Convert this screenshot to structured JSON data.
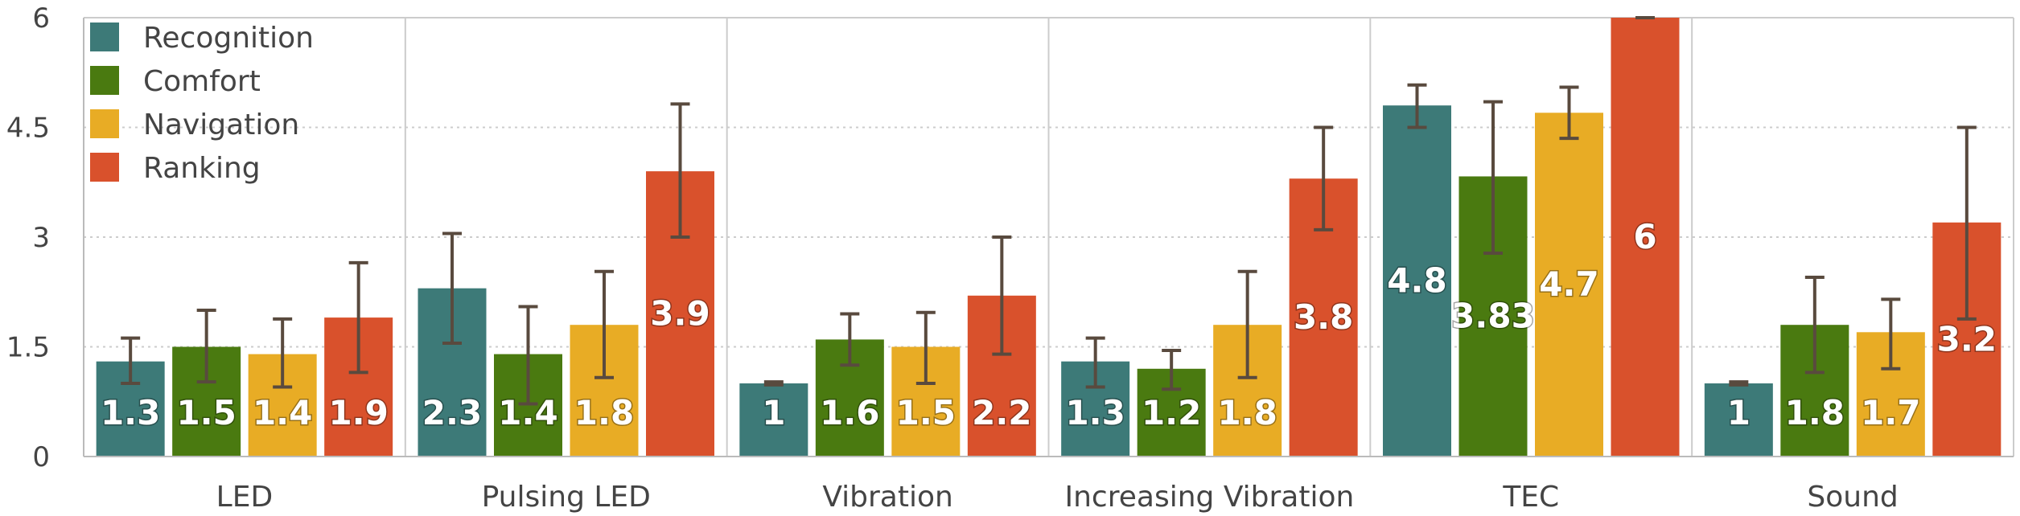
{
  "colors": {
    "Recognition": "#3d7a78",
    "Comfort": "#4a7a10",
    "Navigation": "#e8ac25",
    "Ranking": "#d9512c",
    "error_bar": "#594a3e",
    "grid": "#cccccc",
    "axis": "#bbbbbb"
  },
  "chart_data": {
    "type": "bar",
    "title": "",
    "xlabel": "",
    "ylabel": "",
    "ylim": [
      0,
      6
    ],
    "yticks": [
      "0",
      "1.5",
      "3",
      "4.5",
      "6"
    ],
    "ytick_values": [
      0,
      1.5,
      3,
      4.5,
      6
    ],
    "grid": "horizontal-dotted",
    "legend_position": "top-left",
    "categories": [
      "LED",
      "Pulsing LED",
      "Vibration",
      "Increasing Vibration",
      "TEC",
      "Sound"
    ],
    "series": [
      {
        "name": "Recognition",
        "values": [
          1.3,
          2.3,
          1,
          1.3,
          4.8,
          1
        ],
        "labels": [
          "1.3",
          "2.3",
          "1",
          "1.3",
          "4.8",
          "1"
        ],
        "err_low": [
          1.0,
          1.55,
          0.98,
          0.95,
          4.5,
          0.98
        ],
        "err_high": [
          1.62,
          3.05,
          1.02,
          1.62,
          5.08,
          1.02
        ]
      },
      {
        "name": "Comfort",
        "values": [
          1.5,
          1.4,
          1.6,
          1.2,
          3.83,
          1.8
        ],
        "labels": [
          "1.5",
          "1.4",
          "1.6",
          "1.2",
          "3.83",
          "1.8"
        ],
        "err_low": [
          1.02,
          0.72,
          1.25,
          0.92,
          2.78,
          1.15
        ],
        "err_high": [
          2.0,
          2.05,
          1.95,
          1.45,
          4.85,
          2.45
        ]
      },
      {
        "name": "Navigation",
        "values": [
          1.4,
          1.8,
          1.5,
          1.8,
          4.7,
          1.7
        ],
        "labels": [
          "1.4",
          "1.8",
          "1.5",
          "1.8",
          "4.7",
          "1.7"
        ],
        "err_low": [
          0.95,
          1.08,
          1.0,
          1.08,
          4.35,
          1.2
        ],
        "err_high": [
          1.88,
          2.53,
          1.97,
          2.53,
          5.05,
          2.15
        ]
      },
      {
        "name": "Ranking",
        "values": [
          1.9,
          3.9,
          2.2,
          3.8,
          6,
          3.2
        ],
        "labels": [
          "1.9",
          "3.9",
          "2.2",
          "3.8",
          "6",
          "3.2"
        ],
        "err_low": [
          1.15,
          3.0,
          1.4,
          3.1,
          6,
          1.88
        ],
        "err_high": [
          2.65,
          4.82,
          3.0,
          4.5,
          6,
          4.5
        ]
      }
    ]
  }
}
